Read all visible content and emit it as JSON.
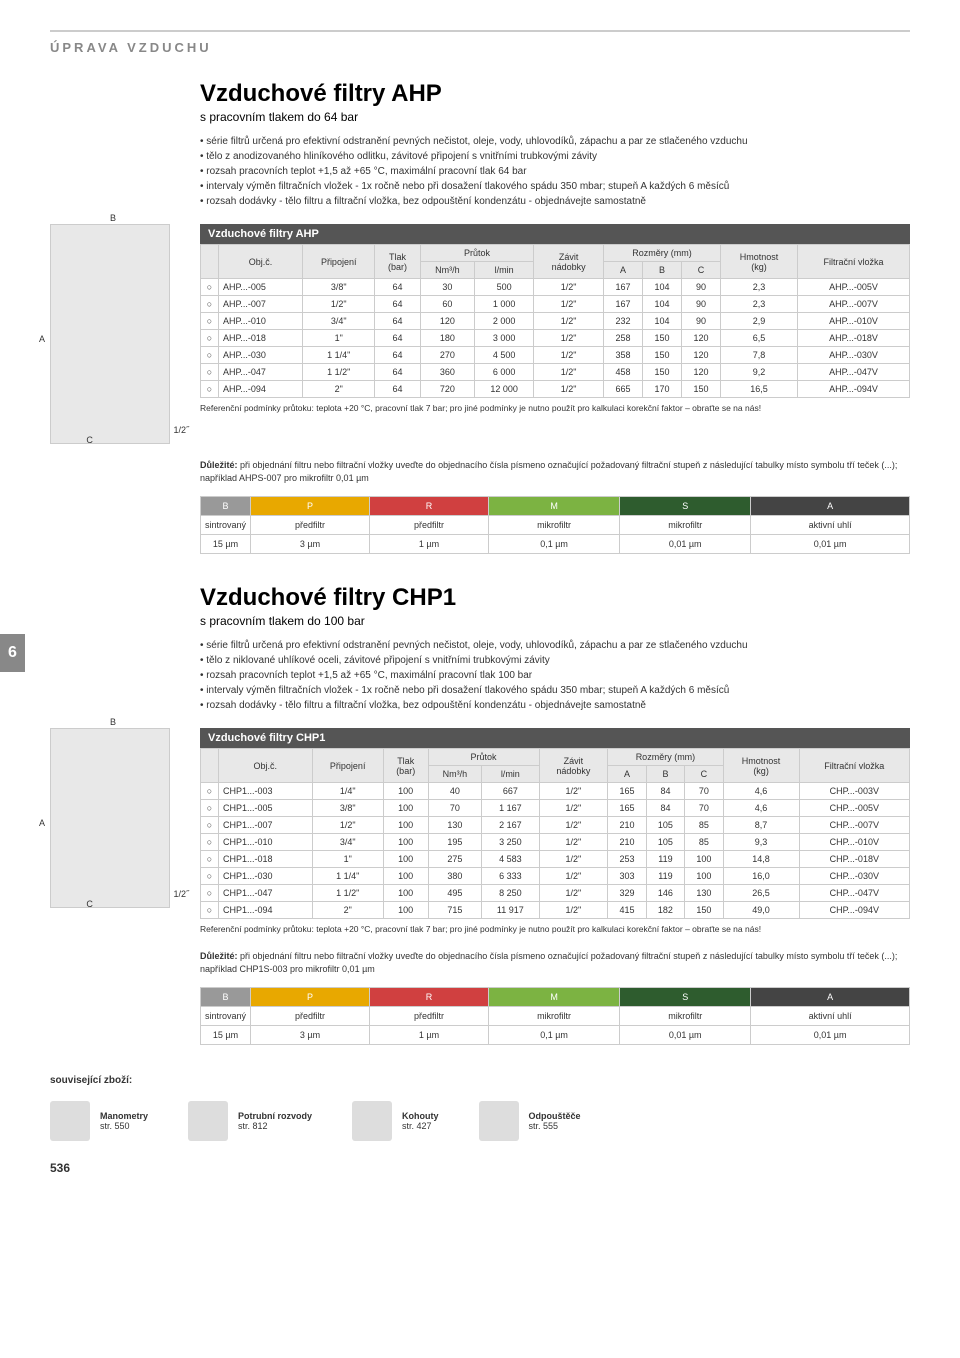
{
  "header": "ÚPRAVA VZDUCHU",
  "pageNum": "6",
  "pageFooter": "536",
  "section1": {
    "title": "Vzduchové filtry AHP",
    "subtitle": "s pracovním tlakem do 64 bar",
    "bullets": [
      "série filtrů určená pro efektivní odstranění pevných nečistot, oleje, vody, uhlovodíků, zápachu a par ze stlačeného vzduchu",
      "tělo z anodizovaného hliníkového odlitku, závitové připojení s vnitřními trubkovými závity",
      "rozsah pracovních teplot +1,5 až +65 °C, maximální pracovní tlak 64 bar",
      "intervaly výměn filtračních vložek - 1x ročně nebo při dosažení tlakového spádu 350 mbar; stupeň A každých 6 měsíců",
      "rozsah dodávky - tělo filtru a filtrační vložka, bez odpouštění kondenzátu - objednávejte samostatně"
    ],
    "tableTitle": "Vzduchové filtry AHP",
    "diagramPort": "1/2˝",
    "rows": [
      [
        "○",
        "AHP...-005",
        "3/8\"",
        "64",
        "30",
        "500",
        "1/2\"",
        "167",
        "104",
        "90",
        "2,3",
        "AHP...-005V"
      ],
      [
        "○",
        "AHP...-007",
        "1/2\"",
        "64",
        "60",
        "1 000",
        "1/2\"",
        "167",
        "104",
        "90",
        "2,3",
        "AHP...-007V"
      ],
      [
        "○",
        "AHP...-010",
        "3/4\"",
        "64",
        "120",
        "2 000",
        "1/2\"",
        "232",
        "104",
        "90",
        "2,9",
        "AHP...-010V"
      ],
      [
        "○",
        "AHP...-018",
        "1\"",
        "64",
        "180",
        "3 000",
        "1/2\"",
        "258",
        "150",
        "120",
        "6,5",
        "AHP...-018V"
      ],
      [
        "○",
        "AHP...-030",
        "1 1/4\"",
        "64",
        "270",
        "4 500",
        "1/2\"",
        "358",
        "150",
        "120",
        "7,8",
        "AHP...-030V"
      ],
      [
        "○",
        "AHP...-047",
        "1 1/2\"",
        "64",
        "360",
        "6 000",
        "1/2\"",
        "458",
        "150",
        "120",
        "9,2",
        "AHP...-047V"
      ],
      [
        "○",
        "AHP...-094",
        "2\"",
        "64",
        "720",
        "12 000",
        "1/2\"",
        "665",
        "170",
        "150",
        "16,5",
        "AHP...-094V"
      ]
    ],
    "refNote": "Referenční podmínky průtoku: teplota +20 °C, pracovní tlak 7 bar; pro jiné podmínky je nutno použít pro kalkulaci korekční faktor – obraťte se na nás!",
    "importantLabel": "Důležité:",
    "importantText": " při objednání filtru nebo filtrační vložky uveďte do objednacího čísla písmeno označující požadovaný filtrační stupeň z následující tabulky místo symbolu tří teček (...); například AHPS-007 pro mikrofiltr 0,01 µm"
  },
  "section2": {
    "title": "Vzduchové filtry CHP1",
    "subtitle": "s pracovním tlakem do 100 bar",
    "bullets": [
      "série filtrů určená pro efektivní odstranění pevných nečistot, oleje, vody, uhlovodíků, zápachu a par ze stlačeného vzduchu",
      "tělo z niklované uhlíkové oceli, závitové připojení s vnitřními trubkovými závity",
      "rozsah pracovních teplot +1,5 až +65 °C, maximální pracovní tlak 100 bar",
      "intervaly výměn filtračních vložek - 1x ročně nebo při dosažení tlakového spádu 350 mbar; stupeň A každých 6 měsíců",
      "rozsah dodávky - tělo filtru a filtrační vložka, bez odpouštění kondenzátu - objednávejte samostatně"
    ],
    "tableTitle": "Vzduchové filtry CHP1",
    "diagramPort": "1/2˝",
    "rows": [
      [
        "○",
        "CHP1...-003",
        "1/4\"",
        "100",
        "40",
        "667",
        "1/2\"",
        "165",
        "84",
        "70",
        "4,6",
        "CHP...-003V"
      ],
      [
        "○",
        "CHP1...-005",
        "3/8\"",
        "100",
        "70",
        "1 167",
        "1/2\"",
        "165",
        "84",
        "70",
        "4,6",
        "CHP...-005V"
      ],
      [
        "○",
        "CHP1...-007",
        "1/2\"",
        "100",
        "130",
        "2 167",
        "1/2\"",
        "210",
        "105",
        "85",
        "8,7",
        "CHP...-007V"
      ],
      [
        "○",
        "CHP1...-010",
        "3/4\"",
        "100",
        "195",
        "3 250",
        "1/2\"",
        "210",
        "105",
        "85",
        "9,3",
        "CHP...-010V"
      ],
      [
        "○",
        "CHP1...-018",
        "1\"",
        "100",
        "275",
        "4 583",
        "1/2\"",
        "253",
        "119",
        "100",
        "14,8",
        "CHP...-018V"
      ],
      [
        "○",
        "CHP1...-030",
        "1 1/4\"",
        "100",
        "380",
        "6 333",
        "1/2\"",
        "303",
        "119",
        "100",
        "16,0",
        "CHP...-030V"
      ],
      [
        "○",
        "CHP1...-047",
        "1 1/2\"",
        "100",
        "495",
        "8 250",
        "1/2\"",
        "329",
        "146",
        "130",
        "26,5",
        "CHP...-047V"
      ],
      [
        "○",
        "CHP1...-094",
        "2\"",
        "100",
        "715",
        "11 917",
        "1/2\"",
        "415",
        "182",
        "150",
        "49,0",
        "CHP...-094V"
      ]
    ],
    "refNote": "Referenční podmínky průtoku: teplota +20 °C, pracovní tlak 7 bar; pro jiné podmínky je nutno použít pro kalkulaci korekční faktor – obraťte se na nás!",
    "importantLabel": "Důležité:",
    "importantText": " při objednání filtru nebo filtrační vložky uveďte do objednacího čísla písmeno označující požadovaný filtrační stupeň z následující tabulky místo symbolu tří teček (...); například CHP1S-003 pro mikrofiltr 0,01 µm"
  },
  "tableHeaders": {
    "obj": "Obj.č.",
    "prip": "Připojení",
    "tlak": "Tlak",
    "bar": "(bar)",
    "prutok": "Průtok",
    "nm3h": "Nm³/h",
    "lmin": "l/min",
    "zavit": "Závit",
    "nadobky": "nádobky",
    "rozmery": "Rozměry (mm)",
    "a": "A",
    "b": "B",
    "c": "C",
    "hmotnost": "Hmotnost",
    "kg": "(kg)",
    "vlozka": "Filtrační vložka"
  },
  "filterGrades": {
    "headers": [
      "B",
      "P",
      "R",
      "M",
      "S",
      "A"
    ],
    "colors": [
      "#999",
      "#e8a800",
      "#d04040",
      "#7cb342",
      "#2e5c2e",
      "#444"
    ],
    "row1": [
      "sintrovaný",
      "předfiltr",
      "předfiltr",
      "mikrofiltr",
      "mikrofiltr",
      "aktivní uhlí"
    ],
    "row2": [
      "15 µm",
      "3 µm",
      "1 µm",
      "0,1 µm",
      "0,01 µm",
      "0,01 µm"
    ]
  },
  "related": {
    "title": "související zboží:",
    "items": [
      {
        "name": "Manometry",
        "page": "str. 550"
      },
      {
        "name": "Potrubní rozvody",
        "page": "str. 812"
      },
      {
        "name": "Kohouty",
        "page": "str. 427"
      },
      {
        "name": "Odpouštěče",
        "page": "str. 555"
      }
    ]
  }
}
